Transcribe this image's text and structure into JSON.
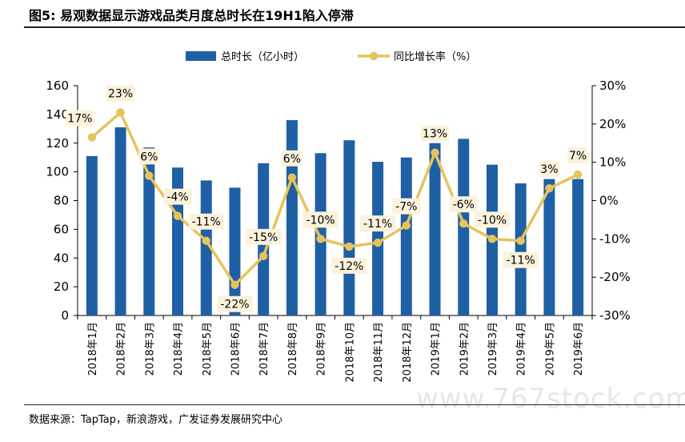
{
  "header": {
    "title": "图5:  易观数据显示游戏品类月度总时长在19H1陷入停滞"
  },
  "footer": {
    "source": "数据来源：TapTap，新浪游戏，广发证券发展研究中心",
    "watermark": "www.767stock.com"
  },
  "colors": {
    "bar": "#1f5fa4",
    "line": "#e6c35c",
    "label_bg": "#fbf2dc"
  },
  "chart_data": {
    "type": "bar+line",
    "categories": [
      "2018年1月",
      "2018年2月",
      "2018年3月",
      "2018年4月",
      "2018年5月",
      "2018年6月",
      "2018年7月",
      "2018年8月",
      "2018年9月",
      "2018年10月",
      "2018年11月",
      "2018年12月",
      "2019年1月",
      "2019年2月",
      "2019年3月",
      "2019年4月",
      "2019年5月",
      "2019年6月"
    ],
    "series": [
      {
        "name": "总时长（亿小时）",
        "type": "bar",
        "axis": "left",
        "values": [
          111,
          131,
          117,
          103,
          94,
          89,
          106,
          136,
          113,
          122,
          107,
          110,
          120,
          123,
          105,
          92,
          95,
          95
        ]
      },
      {
        "name": "同比增长率（%）",
        "type": "line",
        "axis": "right",
        "values": [
          17,
          23,
          6,
          -4,
          -11,
          -22,
          -15,
          6,
          -10,
          -12,
          -11,
          -7,
          13,
          -6,
          -10,
          -11,
          3,
          7
        ],
        "labels": [
          "17%",
          "23%",
          "6%",
          "-4%",
          "-11%",
          "-22%",
          "-15%",
          "6%",
          "-10%",
          "-12%",
          "-11%",
          "-7%",
          "13%",
          "-6%",
          "-10%",
          "-11%",
          "3%",
          "7%"
        ],
        "plotted_values": [
          16.5,
          23,
          6.5,
          -4,
          -10.5,
          -22,
          -14.5,
          6,
          -10,
          -12,
          -11,
          -6.5,
          12.5,
          -6,
          -10,
          -10.5,
          3.2,
          6.8
        ]
      }
    ],
    "y_left": {
      "ylim": [
        0,
        160
      ],
      "ticks": [
        0,
        20,
        40,
        60,
        80,
        100,
        120,
        140,
        160
      ]
    },
    "y_right": {
      "ylim": [
        -30,
        30
      ],
      "ticks": [
        "-30%",
        "-20%",
        "-10%",
        "0%",
        "10%",
        "20%",
        "30%"
      ]
    },
    "legend": {
      "position": "top-center"
    }
  }
}
